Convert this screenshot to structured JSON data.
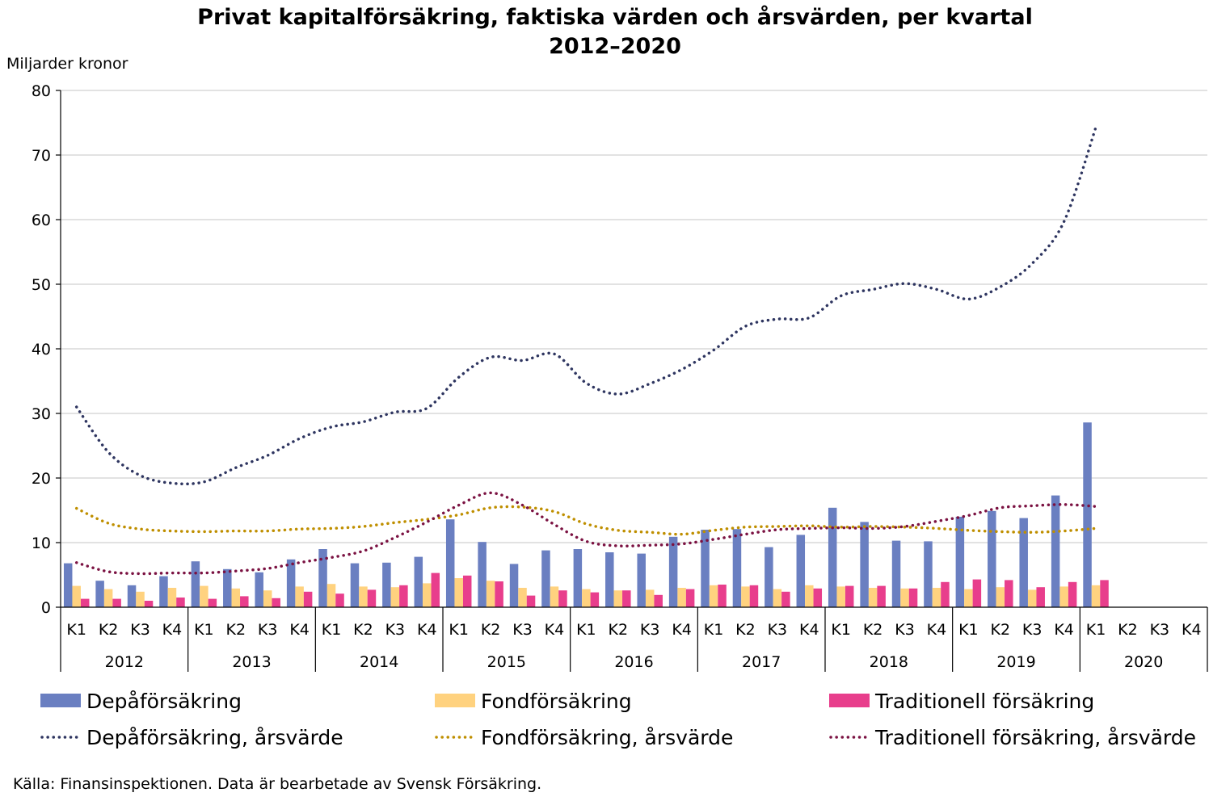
{
  "chart_data": {
    "type": "bar",
    "title_line1": "Privat kapitalförsäkring, faktiska värden och årsvärden, per kvartal",
    "title_line2": "2012–2020",
    "unit_label": "Miljarder kronor",
    "ylim": [
      0,
      80
    ],
    "yticks": [
      "0",
      "10",
      "20",
      "30",
      "40",
      "50",
      "60",
      "70",
      "80"
    ],
    "grid": true,
    "legend_position": "bottom",
    "years": [
      "2012",
      "2013",
      "2014",
      "2015",
      "2016",
      "2017",
      "2018",
      "2019",
      "2020"
    ],
    "quarters": [
      "K1",
      "K2",
      "K3",
      "K4"
    ],
    "bar_series": [
      {
        "name": "Depåförsäkring",
        "color": "#6a7fc1",
        "values": [
          6.8,
          4.1,
          3.4,
          4.8,
          7.1,
          5.9,
          5.4,
          7.4,
          9.0,
          6.8,
          6.9,
          7.8,
          13.6,
          10.1,
          6.7,
          8.8,
          9.0,
          8.5,
          8.3,
          10.9,
          12.0,
          12.1,
          9.3,
          11.2,
          15.4,
          13.2,
          10.3,
          10.2,
          14.0,
          14.9,
          13.8,
          17.3,
          28.6,
          null,
          null,
          null
        ]
      },
      {
        "name": "Fondförsäkring",
        "color": "#ffd27f",
        "values": [
          3.3,
          2.8,
          2.4,
          3.0,
          3.3,
          2.9,
          2.6,
          3.2,
          3.6,
          3.2,
          3.1,
          3.7,
          4.5,
          4.1,
          3.0,
          3.2,
          2.8,
          2.6,
          2.7,
          3.0,
          3.4,
          3.2,
          2.8,
          3.4,
          3.2,
          3.0,
          2.9,
          3.0,
          2.8,
          3.1,
          2.7,
          3.2,
          3.4,
          null,
          null,
          null
        ]
      },
      {
        "name": "Traditionell försäkring",
        "color": "#e83e8c",
        "values": [
          1.3,
          1.3,
          1.0,
          1.5,
          1.3,
          1.7,
          1.4,
          2.4,
          2.1,
          2.7,
          3.4,
          5.3,
          4.9,
          4.0,
          1.8,
          2.6,
          2.3,
          2.6,
          1.9,
          2.8,
          3.5,
          3.4,
          2.4,
          2.9,
          3.3,
          3.3,
          2.9,
          3.9,
          4.3,
          4.2,
          3.1,
          3.9,
          4.2,
          null,
          null,
          null
        ]
      }
    ],
    "line_series": [
      {
        "name": "Depåförsäkring, årsvärde",
        "color": "#2e3560",
        "values": [
          31.0,
          24.0,
          20.4,
          19.2,
          19.4,
          21.6,
          23.5,
          26.1,
          27.9,
          28.7,
          30.2,
          30.8,
          35.6,
          38.7,
          38.2,
          39.2,
          34.7,
          33.0,
          34.6,
          36.8,
          39.8,
          43.5,
          44.6,
          44.8,
          48.2,
          49.2,
          50.1,
          49.2,
          47.7,
          49.6,
          53.2,
          59.7,
          74.3,
          null,
          null,
          null
        ]
      },
      {
        "name": "Fondförsäkring, årsvärde",
        "color": "#bf8f00",
        "values": [
          15.3,
          13.0,
          12.1,
          11.8,
          11.7,
          11.8,
          11.8,
          12.1,
          12.2,
          12.5,
          13.1,
          13.6,
          14.3,
          15.4,
          15.5,
          14.8,
          12.9,
          11.9,
          11.6,
          11.3,
          11.9,
          12.4,
          12.5,
          12.6,
          12.4,
          12.5,
          12.4,
          12.2,
          11.9,
          11.7,
          11.6,
          11.8,
          12.2,
          null,
          null,
          null
        ]
      },
      {
        "name": "Traditionell försäkring, årsvärde",
        "color": "#7b1242",
        "values": [
          6.9,
          5.5,
          5.2,
          5.3,
          5.3,
          5.6,
          6.0,
          6.9,
          7.7,
          8.7,
          10.8,
          13.2,
          15.8,
          17.7,
          15.8,
          12.8,
          10.2,
          9.5,
          9.6,
          9.8,
          10.5,
          11.3,
          12.0,
          12.2,
          12.3,
          12.2,
          12.5,
          13.3,
          14.2,
          15.4,
          15.7,
          15.9,
          15.6,
          null,
          null,
          null
        ]
      }
    ],
    "source": "Källa: Finansinspektionen. Data är bearbetade av Svensk Försäkring."
  }
}
